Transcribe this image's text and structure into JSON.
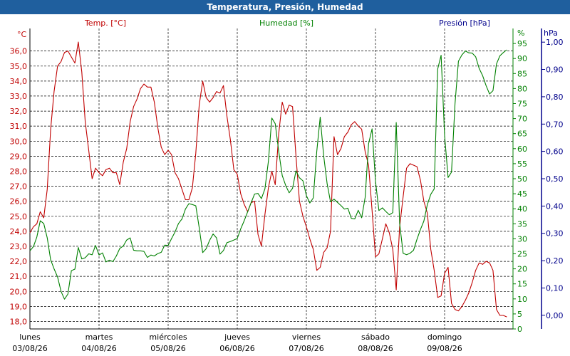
{
  "window": {
    "title": "Temperatura, Presión, Humedad"
  },
  "colors": {
    "title_bg": "#1f5f9e",
    "temp": "#c00000",
    "hum": "#008000",
    "pres": "#00008b",
    "grid": "#000000"
  },
  "chart_data": {
    "type": "line",
    "title": "Temperatura, Presión, Humedad",
    "grid": true,
    "x_ticks": [
      {
        "day": "lunes",
        "date": "03/08/26",
        "t": 0
      },
      {
        "day": "martes",
        "date": "04/08/26",
        "t": 1
      },
      {
        "day": "miércoles",
        "date": "05/08/26",
        "t": 2
      },
      {
        "day": "jueves",
        "date": "06/08/26",
        "t": 3
      },
      {
        "day": "viernes",
        "date": "07/08/26",
        "t": 4
      },
      {
        "day": "sábado",
        "date": "08/08/26",
        "t": 5
      },
      {
        "day": "domingo",
        "date": "09/08/26",
        "t": 6
      }
    ],
    "axes": {
      "temp": {
        "unit": "°C",
        "min": 17.5,
        "max": 37.5,
        "ticks": [
          "18,0",
          "19,0",
          "20,0",
          "21,0",
          "22,0",
          "23,0",
          "24,0",
          "25,0",
          "26,0",
          "27,0",
          "28,0",
          "29,0",
          "30,0",
          "31,0",
          "32,0",
          "33,0",
          "34,0",
          "35,0",
          "36,0"
        ],
        "side": "left"
      },
      "hum": {
        "unit": "%",
        "min": 0,
        "max": 100,
        "ticks": [
          "0",
          "5",
          "10",
          "15",
          "20",
          "25",
          "30",
          "35",
          "40",
          "45",
          "50",
          "55",
          "60",
          "65",
          "70",
          "75",
          "80",
          "85",
          "90",
          "95"
        ],
        "side": "right"
      },
      "pres": {
        "unit": "hPa",
        "min": -0.05,
        "max": 1.05,
        "ticks": [
          "0,00",
          "0,10",
          "0,20",
          "0,30",
          "0,40",
          "0,50",
          "0,60",
          "0,70",
          "0,80",
          "0,90",
          "1,00"
        ],
        "side": "right"
      }
    },
    "series": [
      {
        "name": "Temp. [°C]",
        "axis": "temp",
        "color": "#c00000",
        "points": [
          [
            0,
            23.9
          ],
          [
            0.05,
            24.3
          ],
          [
            0.1,
            24.5
          ],
          [
            0.15,
            25.3
          ],
          [
            0.2,
            24.9
          ],
          [
            0.25,
            26.8
          ],
          [
            0.3,
            30.8
          ],
          [
            0.35,
            33.3
          ],
          [
            0.4,
            35.0
          ],
          [
            0.45,
            35.3
          ],
          [
            0.5,
            35.9
          ],
          [
            0.55,
            36.0
          ],
          [
            0.6,
            35.6
          ],
          [
            0.65,
            35.2
          ],
          [
            0.7,
            36.6
          ],
          [
            0.75,
            34.6
          ],
          [
            0.8,
            31.3
          ],
          [
            0.85,
            29.4
          ],
          [
            0.9,
            27.5
          ],
          [
            0.95,
            28.2
          ],
          [
            1.0,
            27.9
          ],
          [
            1.05,
            27.7
          ],
          [
            1.1,
            28.1
          ],
          [
            1.15,
            28.2
          ],
          [
            1.2,
            27.9
          ],
          [
            1.25,
            27.9
          ],
          [
            1.3,
            27.1
          ],
          [
            1.35,
            28.6
          ],
          [
            1.4,
            29.5
          ],
          [
            1.45,
            31.3
          ],
          [
            1.5,
            32.3
          ],
          [
            1.55,
            32.8
          ],
          [
            1.6,
            33.5
          ],
          [
            1.65,
            33.8
          ],
          [
            1.7,
            33.6
          ],
          [
            1.75,
            33.6
          ],
          [
            1.8,
            32.6
          ],
          [
            1.85,
            30.9
          ],
          [
            1.9,
            29.6
          ],
          [
            1.95,
            29.1
          ],
          [
            2.0,
            29.4
          ],
          [
            2.05,
            29.1
          ],
          [
            2.1,
            27.9
          ],
          [
            2.15,
            27.5
          ],
          [
            2.2,
            26.8
          ],
          [
            2.25,
            26.1
          ],
          [
            2.3,
            26.1
          ],
          [
            2.35,
            26.9
          ],
          [
            2.4,
            29.2
          ],
          [
            2.45,
            32.4
          ],
          [
            2.5,
            34.0
          ],
          [
            2.55,
            32.9
          ],
          [
            2.6,
            32.6
          ],
          [
            2.65,
            32.9
          ],
          [
            2.7,
            33.3
          ],
          [
            2.75,
            33.2
          ],
          [
            2.8,
            33.7
          ],
          [
            2.85,
            31.7
          ],
          [
            2.9,
            30.1
          ],
          [
            2.95,
            28.1
          ],
          [
            3.0,
            27.8
          ],
          [
            3.05,
            26.5
          ],
          [
            3.1,
            25.8
          ],
          [
            3.15,
            25.3
          ],
          [
            3.2,
            25.9
          ],
          [
            3.25,
            26.0
          ],
          [
            3.3,
            23.8
          ],
          [
            3.35,
            23.0
          ],
          [
            3.4,
            25.1
          ],
          [
            3.45,
            26.9
          ],
          [
            3.5,
            28.0
          ],
          [
            3.55,
            27.1
          ],
          [
            3.6,
            30.5
          ],
          [
            3.65,
            32.6
          ],
          [
            3.7,
            31.8
          ],
          [
            3.75,
            32.4
          ],
          [
            3.8,
            32.3
          ],
          [
            3.85,
            29.0
          ],
          [
            3.9,
            26.0
          ],
          [
            3.95,
            25.0
          ],
          [
            4.0,
            24.3
          ],
          [
            4.05,
            23.5
          ],
          [
            4.1,
            22.8
          ],
          [
            4.15,
            21.4
          ],
          [
            4.2,
            21.6
          ],
          [
            4.25,
            22.6
          ],
          [
            4.3,
            22.9
          ],
          [
            4.35,
            24.0
          ],
          [
            4.4,
            30.3
          ],
          [
            4.45,
            29.1
          ],
          [
            4.5,
            29.5
          ],
          [
            4.55,
            30.3
          ],
          [
            4.6,
            30.6
          ],
          [
            4.65,
            31.1
          ],
          [
            4.7,
            31.3
          ],
          [
            4.75,
            31.0
          ],
          [
            4.8,
            30.8
          ],
          [
            4.85,
            29.3
          ],
          [
            4.9,
            28.4
          ],
          [
            4.95,
            25.4
          ],
          [
            5.0,
            22.3
          ],
          [
            5.05,
            22.5
          ],
          [
            5.1,
            23.5
          ],
          [
            5.15,
            24.5
          ],
          [
            5.2,
            23.9
          ],
          [
            5.25,
            22.8
          ],
          [
            5.3,
            20.1
          ],
          [
            5.35,
            24.3
          ],
          [
            5.4,
            26.3
          ],
          [
            5.45,
            28.2
          ],
          [
            5.5,
            28.5
          ],
          [
            5.55,
            28.4
          ],
          [
            5.6,
            28.3
          ],
          [
            5.65,
            27.4
          ],
          [
            5.7,
            26.0
          ],
          [
            5.75,
            25.2
          ],
          [
            5.8,
            22.8
          ],
          [
            5.85,
            21.4
          ],
          [
            5.9,
            19.6
          ],
          [
            5.95,
            19.7
          ],
          [
            6.0,
            21.2
          ],
          [
            6.05,
            21.6
          ],
          [
            6.1,
            19.2
          ],
          [
            6.15,
            18.8
          ],
          [
            6.2,
            18.7
          ],
          [
            6.25,
            19.0
          ],
          [
            6.3,
            19.4
          ],
          [
            6.35,
            19.9
          ],
          [
            6.4,
            20.6
          ],
          [
            6.45,
            21.4
          ],
          [
            6.5,
            21.9
          ],
          [
            6.55,
            21.8
          ],
          [
            6.6,
            22.0
          ],
          [
            6.65,
            21.9
          ],
          [
            6.7,
            21.4
          ],
          [
            6.75,
            18.8
          ],
          [
            6.8,
            18.4
          ],
          [
            6.85,
            18.4
          ],
          [
            6.9,
            18.3
          ]
        ]
      },
      {
        "name": "Humedad [%]",
        "axis": "hum",
        "color": "#008000",
        "points": [
          [
            0,
            26.0
          ],
          [
            0.05,
            27.4
          ],
          [
            0.1,
            30.6
          ],
          [
            0.15,
            36.0
          ],
          [
            0.2,
            35.1
          ],
          [
            0.25,
            30.3
          ],
          [
            0.3,
            23.0
          ],
          [
            0.35,
            20.0
          ],
          [
            0.4,
            17.3
          ],
          [
            0.45,
            12.5
          ],
          [
            0.5,
            9.9
          ],
          [
            0.55,
            11.6
          ],
          [
            0.6,
            19.4
          ],
          [
            0.65,
            19.9
          ],
          [
            0.7,
            27.1
          ],
          [
            0.75,
            23.3
          ],
          [
            0.8,
            23.7
          ],
          [
            0.85,
            25.0
          ],
          [
            0.9,
            24.7
          ],
          [
            0.95,
            27.8
          ],
          [
            1.0,
            24.6
          ],
          [
            1.05,
            25.3
          ],
          [
            1.1,
            22.3
          ],
          [
            1.15,
            22.9
          ],
          [
            1.2,
            22.4
          ],
          [
            1.25,
            24.3
          ],
          [
            1.3,
            26.8
          ],
          [
            1.35,
            27.6
          ],
          [
            1.4,
            29.6
          ],
          [
            1.45,
            30.3
          ],
          [
            1.5,
            26.2
          ],
          [
            1.55,
            26.0
          ],
          [
            1.6,
            26.0
          ],
          [
            1.65,
            25.8
          ],
          [
            1.7,
            23.8
          ],
          [
            1.75,
            24.6
          ],
          [
            1.8,
            24.3
          ],
          [
            1.85,
            25.1
          ],
          [
            1.9,
            25.5
          ],
          [
            1.95,
            27.9
          ],
          [
            2.0,
            27.8
          ],
          [
            2.05,
            30.1
          ],
          [
            2.1,
            32.3
          ],
          [
            2.15,
            35.1
          ],
          [
            2.2,
            36.6
          ],
          [
            2.25,
            39.9
          ],
          [
            2.3,
            41.7
          ],
          [
            2.35,
            41.4
          ],
          [
            2.4,
            41.0
          ],
          [
            2.45,
            33.7
          ],
          [
            2.5,
            25.4
          ],
          [
            2.55,
            26.7
          ],
          [
            2.6,
            29.5
          ],
          [
            2.65,
            31.6
          ],
          [
            2.7,
            30.3
          ],
          [
            2.75,
            24.9
          ],
          [
            2.8,
            26.1
          ],
          [
            2.85,
            28.7
          ],
          [
            2.9,
            29.1
          ],
          [
            2.95,
            29.6
          ],
          [
            3.0,
            30.1
          ],
          [
            3.05,
            33.3
          ],
          [
            3.1,
            36.0
          ],
          [
            3.15,
            39.0
          ],
          [
            3.2,
            42.0
          ],
          [
            3.25,
            44.9
          ],
          [
            3.3,
            45.1
          ],
          [
            3.35,
            43.4
          ],
          [
            3.4,
            46.6
          ],
          [
            3.45,
            55.8
          ],
          [
            3.5,
            70.2
          ],
          [
            3.55,
            68.3
          ],
          [
            3.6,
            59.1
          ],
          [
            3.65,
            51.1
          ],
          [
            3.7,
            47.8
          ],
          [
            3.75,
            45.3
          ],
          [
            3.8,
            46.8
          ],
          [
            3.85,
            52.6
          ],
          [
            3.9,
            50.3
          ],
          [
            3.95,
            49.3
          ],
          [
            4.0,
            44.4
          ],
          [
            4.05,
            41.9
          ],
          [
            4.1,
            43.6
          ],
          [
            4.15,
            59.1
          ],
          [
            4.2,
            70.5
          ],
          [
            4.25,
            57.6
          ],
          [
            4.3,
            48.4
          ],
          [
            4.35,
            42.3
          ],
          [
            4.4,
            43.2
          ],
          [
            4.45,
            42.1
          ],
          [
            4.5,
            41.1
          ],
          [
            4.55,
            39.9
          ],
          [
            4.6,
            40.2
          ],
          [
            4.65,
            36.8
          ],
          [
            4.7,
            36.6
          ],
          [
            4.75,
            39.5
          ],
          [
            4.8,
            37.0
          ],
          [
            4.85,
            43.8
          ],
          [
            4.9,
            61.6
          ],
          [
            4.95,
            66.6
          ],
          [
            5.0,
            49.2
          ],
          [
            5.05,
            39.4
          ],
          [
            5.1,
            40.3
          ],
          [
            5.15,
            39.1
          ],
          [
            5.2,
            38.0
          ],
          [
            5.25,
            38.7
          ],
          [
            5.3,
            68.7
          ],
          [
            5.35,
            35.1
          ],
          [
            5.4,
            25.2
          ],
          [
            5.45,
            24.7
          ],
          [
            5.5,
            25.2
          ],
          [
            5.55,
            26.2
          ],
          [
            5.6,
            29.8
          ],
          [
            5.65,
            33.1
          ],
          [
            5.7,
            35.9
          ],
          [
            5.75,
            41.4
          ],
          [
            5.8,
            44.8
          ],
          [
            5.85,
            46.6
          ],
          [
            5.9,
            86.5
          ],
          [
            5.95,
            91.1
          ],
          [
            6.0,
            64.4
          ],
          [
            6.05,
            50.4
          ],
          [
            6.1,
            52.2
          ],
          [
            6.15,
            74.9
          ],
          [
            6.2,
            89.1
          ],
          [
            6.25,
            91.2
          ],
          [
            6.3,
            92.5
          ],
          [
            6.35,
            91.9
          ],
          [
            6.4,
            91.8
          ],
          [
            6.45,
            90.6
          ],
          [
            6.5,
            86.7
          ],
          [
            6.55,
            84.3
          ],
          [
            6.6,
            81.0
          ],
          [
            6.65,
            78.2
          ],
          [
            6.7,
            79.3
          ],
          [
            6.75,
            88.2
          ],
          [
            6.8,
            90.9
          ],
          [
            6.85,
            92.0
          ],
          [
            6.9,
            92.9
          ]
        ]
      }
    ],
    "series_labels": [
      {
        "text": "Temp. [°C]",
        "axis": "temp"
      },
      {
        "text": "Humedad [%]",
        "axis": "hum"
      },
      {
        "text": "Presión [hPa]",
        "axis": "pres"
      }
    ]
  }
}
